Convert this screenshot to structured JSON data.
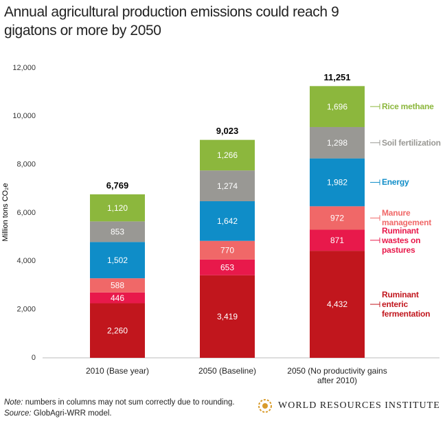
{
  "chart_data": {
    "type": "stacked_bar",
    "title": "Annual agricultural production emissions could reach 9 gigatons or more by 2050",
    "y_label": "Million tons CO₂e",
    "categories": [
      "2010 (Base year)",
      "2050 (Baseline)",
      "2050 (No productivity gains after 2010)"
    ],
    "series": [
      {
        "name": "Ruminant enteric fermentation",
        "color": "#c1161d",
        "values": [
          2260,
          3419,
          4432
        ],
        "value_labels": [
          "2,260",
          "3,419",
          "4,432"
        ]
      },
      {
        "name": "Ruminant wastes on pastures",
        "color": "#e8194b",
        "values": [
          446,
          653,
          871
        ]
      },
      {
        "name": "Manure management",
        "color": "#f06868",
        "values": [
          588,
          770,
          972
        ]
      },
      {
        "name": "Energy",
        "color": "#0f8dc8",
        "values": [
          1502,
          1642,
          1982
        ],
        "value_labels": [
          "1,502",
          "1,642",
          "1,982"
        ]
      },
      {
        "name": "Soil fertilization",
        "color": "#999894",
        "values": [
          853,
          1274,
          1298
        ],
        "value_labels": [
          "853",
          "1,274",
          "1,298"
        ]
      },
      {
        "name": "Rice methane",
        "color": "#8cb73d",
        "values": [
          1120,
          1266,
          1696
        ],
        "value_labels": [
          "1,120",
          "1,266",
          "1,696"
        ]
      }
    ],
    "totals": [
      6769,
      9023,
      11251
    ],
    "total_labels": [
      "6,769",
      "9,023",
      "11,251"
    ],
    "ylim": [
      0,
      12000
    ],
    "yticks": [
      0,
      {
        "value": 2000,
        "label": "2,000"
      },
      {
        "value": 4000,
        "label": "4,000"
      },
      {
        "value": 6000,
        "label": "6,000"
      },
      {
        "value": 8000,
        "label": "8,000"
      },
      {
        "value": 10000,
        "label": "10,000"
      },
      {
        "value": 12000,
        "label": "12,000"
      }
    ],
    "note_label": "Note:",
    "note": "numbers in columns may not sum correctly due to rounding.",
    "source_label": "Source:",
    "source": "GlobAgri-WRR model.",
    "logo": "WORLD RESOURCES INSTITUTE"
  }
}
